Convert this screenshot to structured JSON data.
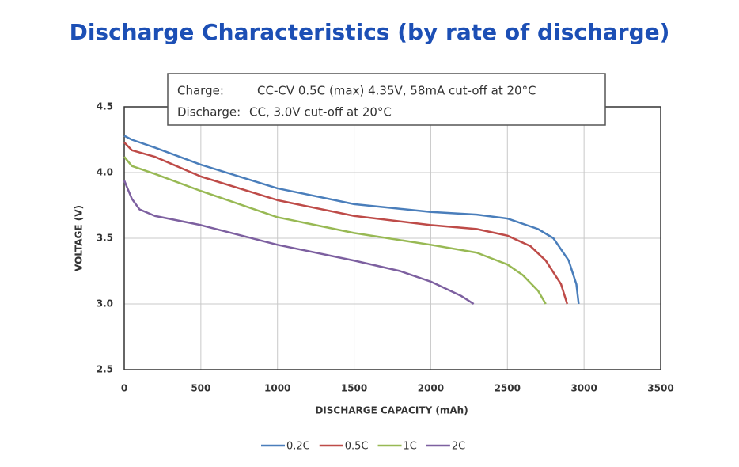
{
  "chart_data": {
    "type": "line",
    "title": "Discharge Characteristics (by rate of discharge)",
    "annotations": [
      [
        "Charge:",
        "CC-CV 0.5C (max) 4.35V, 58mA cut-off at 20°C"
      ],
      [
        "Discharge:",
        "CC, 3.0V cut-off at 20°C"
      ]
    ],
    "x_label": "DISCHARGE CAPACITY (mAh)",
    "y_label": "VOLTAGE (V)",
    "xlim": [
      0,
      3500
    ],
    "xticks": [
      0,
      500,
      1000,
      1500,
      2000,
      2500,
      3000,
      3500
    ],
    "ylim": [
      2.5,
      4.5
    ],
    "yticks": [
      {
        "value": 2.5,
        "label": "2.5"
      },
      {
        "value": 3,
        "label": "3.0"
      },
      {
        "value": 3.5,
        "label": "3.5"
      },
      {
        "value": 4,
        "label": "4.0"
      },
      {
        "value": 4.5,
        "label": "4.5"
      }
    ],
    "grid": true,
    "legend": "bottom",
    "series": [
      {
        "name": "0.2C",
        "color": "#4a7ebb",
        "x": [
          0,
          50,
          200,
          500,
          1000,
          1500,
          2000,
          2300,
          2500,
          2700,
          2800,
          2900,
          2950,
          2965
        ],
        "values": [
          4.28,
          4.25,
          4.19,
          4.06,
          3.88,
          3.76,
          3.7,
          3.68,
          3.65,
          3.57,
          3.5,
          3.33,
          3.15,
          3.0
        ]
      },
      {
        "name": "0.5C",
        "color": "#be4b48",
        "x": [
          0,
          50,
          200,
          500,
          1000,
          1500,
          2000,
          2300,
          2500,
          2650,
          2750,
          2850,
          2890
        ],
        "values": [
          4.23,
          4.17,
          4.12,
          3.97,
          3.79,
          3.67,
          3.6,
          3.57,
          3.52,
          3.44,
          3.33,
          3.15,
          3.0
        ]
      },
      {
        "name": "1C",
        "color": "#98b954",
        "x": [
          0,
          50,
          200,
          500,
          1000,
          1500,
          2000,
          2300,
          2500,
          2600,
          2700,
          2750
        ],
        "values": [
          4.12,
          4.05,
          3.99,
          3.86,
          3.66,
          3.54,
          3.45,
          3.39,
          3.3,
          3.22,
          3.1,
          3.0
        ]
      },
      {
        "name": "2C",
        "color": "#7d60a0",
        "x": [
          0,
          50,
          100,
          200,
          500,
          1000,
          1500,
          1800,
          2000,
          2200,
          2280
        ],
        "values": [
          3.94,
          3.8,
          3.72,
          3.67,
          3.6,
          3.45,
          3.33,
          3.25,
          3.17,
          3.06,
          3.0
        ]
      }
    ]
  }
}
